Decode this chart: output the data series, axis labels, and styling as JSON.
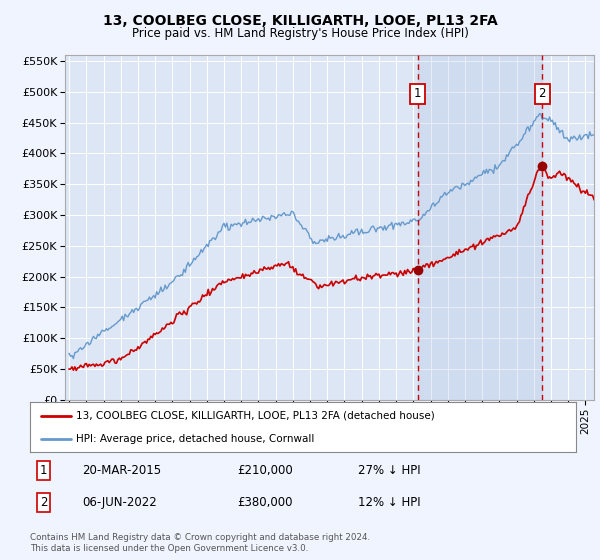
{
  "title1": "13, COOLBEG CLOSE, KILLIGARTH, LOOE, PL13 2FA",
  "title2": "Price paid vs. HM Land Registry's House Price Index (HPI)",
  "background_color": "#f0f4ff",
  "plot_bg_color": "#dce6f5",
  "grid_color": "#ffffff",
  "hpi_color": "#6699cc",
  "price_color": "#cc0000",
  "vline_color": "#cc0000",
  "transaction1": {
    "date": "20-MAR-2015",
    "price": "£210,000",
    "pct": "27% ↓ HPI"
  },
  "transaction2": {
    "date": "06-JUN-2022",
    "price": "£380,000",
    "pct": "12% ↓ HPI"
  },
  "legend_line1": "13, COOLBEG CLOSE, KILLIGARTH, LOOE, PL13 2FA (detached house)",
  "legend_line2": "HPI: Average price, detached house, Cornwall",
  "footer": "Contains HM Land Registry data © Crown copyright and database right 2024.\nThis data is licensed under the Open Government Licence v3.0.",
  "ylim": [
    0,
    560000
  ],
  "yticks": [
    0,
    50000,
    100000,
    150000,
    200000,
    250000,
    300000,
    350000,
    400000,
    450000,
    500000,
    550000
  ],
  "ytick_labels": [
    "£0",
    "£50K",
    "£100K",
    "£150K",
    "£200K",
    "£250K",
    "£300K",
    "£350K",
    "£400K",
    "£450K",
    "£500K",
    "£550K"
  ]
}
